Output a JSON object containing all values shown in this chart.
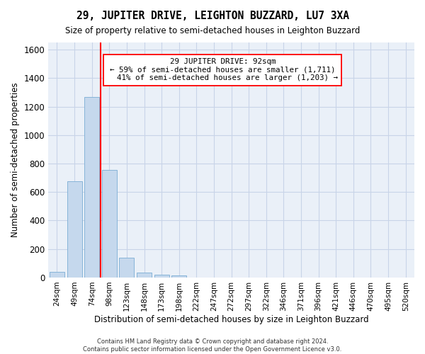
{
  "title": "29, JUPITER DRIVE, LEIGHTON BUZZARD, LU7 3XA",
  "subtitle": "Size of property relative to semi-detached houses in Leighton Buzzard",
  "xlabel": "Distribution of semi-detached houses by size in Leighton Buzzard",
  "ylabel": "Number of semi-detached properties",
  "bar_color": "#c5d8ed",
  "bar_edge_color": "#7aadd4",
  "categories": [
    "24sqm",
    "49sqm",
    "74sqm",
    "98sqm",
    "123sqm",
    "148sqm",
    "173sqm",
    "198sqm",
    "222sqm",
    "247sqm",
    "272sqm",
    "297sqm",
    "322sqm",
    "346sqm",
    "371sqm",
    "396sqm",
    "421sqm",
    "446sqm",
    "470sqm",
    "495sqm",
    "520sqm"
  ],
  "values": [
    38,
    675,
    1265,
    755,
    140,
    35,
    22,
    14,
    0,
    0,
    0,
    0,
    0,
    0,
    0,
    0,
    0,
    0,
    0,
    0,
    0
  ],
  "ylim": [
    0,
    1650
  ],
  "yticks": [
    0,
    200,
    400,
    600,
    800,
    1000,
    1200,
    1400,
    1600
  ],
  "property_size": 92,
  "pct_smaller": 59,
  "pct_larger": 41,
  "count_smaller": 1711,
  "count_larger": 1203,
  "grid_color": "#c8d4e8",
  "background_color": "#eaf0f8",
  "footer": "Contains HM Land Registry data © Crown copyright and database right 2024.\nContains public sector information licensed under the Open Government Licence v3.0."
}
